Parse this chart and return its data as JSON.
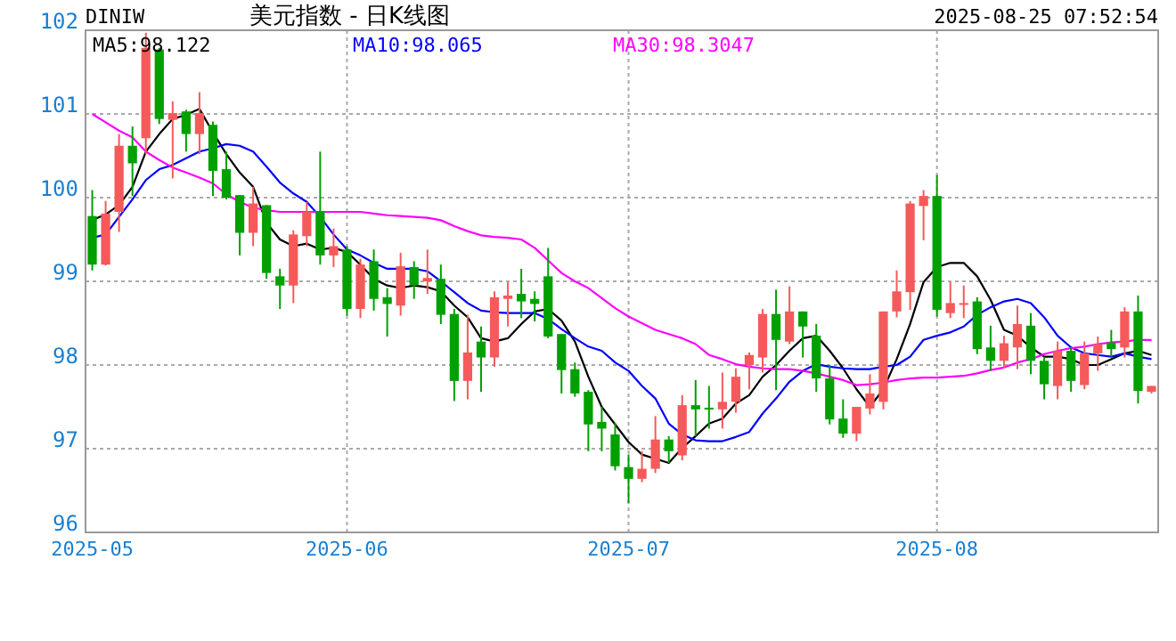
{
  "chart_data": {
    "type": "candlestick",
    "title": "美元指数 - 日K线图",
    "subtitle": "DINIW",
    "annotations": [
      "2025-08-25 07:52:54"
    ],
    "categories": [
      "2025-05",
      null,
      null,
      null,
      null,
      null,
      null,
      null,
      null,
      null,
      null,
      null,
      null,
      null,
      null,
      null,
      null,
      null,
      null,
      "2025-06",
      null,
      null,
      null,
      null,
      null,
      null,
      null,
      null,
      null,
      null,
      null,
      null,
      null,
      null,
      null,
      null,
      null,
      null,
      null,
      null,
      "2025-07",
      null,
      null,
      null,
      null,
      null,
      null,
      null,
      null,
      null,
      null,
      null,
      null,
      null,
      null,
      null,
      null,
      null,
      null,
      null,
      null,
      null,
      null,
      "2025-08",
      null,
      null,
      null,
      null,
      null,
      null,
      null,
      null,
      null,
      null,
      null,
      null,
      null,
      null,
      null,
      null
    ],
    "ohlc": [
      [
        99.78,
        100.09,
        99.13,
        99.2
      ],
      [
        99.2,
        99.96,
        99.19,
        99.81
      ],
      [
        99.83,
        100.76,
        99.59,
        100.62
      ],
      [
        100.62,
        100.85,
        100.02,
        100.41
      ],
      [
        100.71,
        101.97,
        100.52,
        101.79
      ],
      [
        101.77,
        101.79,
        100.88,
        100.94
      ],
      [
        100.93,
        101.15,
        100.23,
        101.01
      ],
      [
        101.03,
        101.05,
        100.55,
        100.76
      ],
      [
        100.76,
        101.26,
        100.52,
        101.01
      ],
      [
        100.87,
        100.91,
        100.02,
        100.32
      ],
      [
        100.34,
        100.55,
        99.98,
        100.0
      ],
      [
        100.03,
        100.03,
        99.31,
        99.58
      ],
      [
        99.58,
        100.13,
        99.42,
        99.93
      ],
      [
        99.91,
        99.91,
        99.03,
        99.1
      ],
      [
        99.06,
        99.15,
        98.67,
        98.95
      ],
      [
        98.95,
        99.61,
        98.74,
        99.56
      ],
      [
        99.54,
        99.95,
        99.42,
        99.83
      ],
      [
        99.84,
        100.55,
        99.2,
        99.31
      ],
      [
        99.31,
        99.63,
        99.17,
        99.42
      ],
      [
        99.38,
        99.42,
        98.59,
        98.67
      ],
      [
        98.67,
        99.27,
        98.56,
        99.2
      ],
      [
        99.24,
        99.38,
        98.65,
        98.79
      ],
      [
        98.81,
        98.92,
        98.34,
        98.73
      ],
      [
        98.71,
        99.34,
        98.59,
        99.18
      ],
      [
        99.17,
        99.24,
        98.79,
        98.95
      ],
      [
        99.0,
        99.38,
        98.85,
        99.04
      ],
      [
        99.03,
        99.2,
        98.49,
        98.6
      ],
      [
        98.61,
        98.67,
        97.57,
        97.81
      ],
      [
        97.81,
        98.6,
        97.59,
        98.15
      ],
      [
        98.28,
        98.46,
        97.68,
        98.09
      ],
      [
        98.09,
        98.88,
        97.98,
        98.81
      ],
      [
        98.79,
        98.99,
        98.46,
        98.83
      ],
      [
        98.85,
        99.15,
        98.56,
        98.76
      ],
      [
        98.79,
        98.88,
        98.52,
        98.73
      ],
      [
        99.06,
        99.4,
        98.32,
        98.34
      ],
      [
        98.37,
        98.37,
        97.66,
        97.94
      ],
      [
        97.95,
        98.03,
        97.62,
        97.66
      ],
      [
        97.68,
        97.7,
        96.97,
        97.29
      ],
      [
        97.32,
        97.5,
        96.97,
        97.24
      ],
      [
        97.17,
        97.31,
        96.74,
        96.79
      ],
      [
        96.78,
        96.93,
        96.35,
        96.64
      ],
      [
        96.64,
        96.97,
        96.6,
        96.76
      ],
      [
        96.76,
        97.39,
        96.71,
        97.11
      ],
      [
        97.11,
        97.15,
        96.83,
        96.97
      ],
      [
        96.92,
        97.64,
        96.86,
        97.52
      ],
      [
        97.52,
        97.82,
        97.15,
        97.47
      ],
      [
        97.49,
        97.75,
        97.24,
        97.47
      ],
      [
        97.47,
        97.91,
        97.24,
        97.56
      ],
      [
        97.56,
        97.96,
        97.43,
        97.86
      ],
      [
        98.0,
        98.15,
        97.71,
        98.12
      ],
      [
        98.09,
        98.67,
        97.91,
        98.61
      ],
      [
        98.61,
        98.9,
        97.7,
        98.3
      ],
      [
        98.28,
        98.94,
        98.25,
        98.64
      ],
      [
        98.64,
        98.64,
        98.09,
        98.46
      ],
      [
        98.35,
        98.49,
        97.68,
        97.84
      ],
      [
        97.84,
        98.0,
        97.29,
        97.35
      ],
      [
        97.36,
        97.59,
        97.13,
        97.18
      ],
      [
        97.18,
        97.5,
        97.09,
        97.5
      ],
      [
        97.48,
        97.89,
        97.41,
        97.66
      ],
      [
        97.56,
        98.64,
        97.47,
        98.64
      ],
      [
        98.64,
        99.13,
        98.57,
        98.88
      ],
      [
        98.87,
        99.96,
        98.66,
        99.93
      ],
      [
        99.9,
        100.09,
        99.49,
        100.02
      ],
      [
        100.02,
        100.27,
        98.58,
        98.66
      ],
      [
        98.62,
        98.99,
        98.56,
        98.74
      ],
      [
        98.73,
        98.95,
        98.56,
        98.74
      ],
      [
        98.76,
        98.81,
        98.13,
        98.19
      ],
      [
        98.21,
        98.47,
        97.93,
        98.05
      ],
      [
        98.05,
        98.35,
        97.96,
        98.26
      ],
      [
        98.21,
        98.71,
        97.95,
        98.49
      ],
      [
        98.47,
        98.62,
        97.89,
        98.05
      ],
      [
        98.05,
        98.1,
        97.59,
        97.77
      ],
      [
        97.75,
        98.28,
        97.59,
        98.17
      ],
      [
        98.17,
        98.21,
        97.68,
        97.81
      ],
      [
        97.76,
        98.28,
        97.71,
        98.14
      ],
      [
        98.14,
        98.34,
        97.93,
        98.25
      ],
      [
        98.27,
        98.42,
        98.1,
        98.19
      ],
      [
        98.21,
        98.69,
        98.09,
        98.64
      ],
      [
        98.64,
        98.83,
        97.54,
        97.69
      ],
      [
        97.68,
        97.75,
        97.66,
        97.75
      ]
    ],
    "series": [
      {
        "name": "MA5:98.122",
        "type": "line",
        "color": "#000000",
        "values": [
          99.73,
          99.8,
          99.91,
          100.13,
          100.55,
          100.76,
          100.94,
          100.99,
          101.06,
          100.78,
          100.52,
          100.3,
          100.13,
          99.7,
          99.5,
          99.42,
          99.45,
          99.38,
          99.4,
          99.35,
          99.2,
          99.03,
          98.95,
          98.92,
          98.95,
          98.93,
          98.88,
          98.71,
          98.57,
          98.32,
          98.28,
          98.32,
          98.49,
          98.64,
          98.67,
          98.53,
          98.28,
          97.86,
          97.5,
          97.29,
          97.08,
          96.93,
          96.88,
          96.83,
          97.01,
          97.15,
          97.3,
          97.36,
          97.54,
          97.64,
          97.86,
          98.0,
          98.17,
          98.32,
          98.35,
          98.17,
          97.96,
          97.71,
          97.5,
          97.71,
          98.07,
          98.49,
          98.99,
          99.17,
          99.22,
          99.22,
          99.06,
          98.78,
          98.42,
          98.35,
          98.21,
          98.1,
          98.1,
          98.07,
          98.0,
          98.0,
          98.07,
          98.14,
          98.17,
          98.12
        ]
      },
      {
        "name": "MA10:98.065",
        "type": "line",
        "color": "#0000ff",
        "values": [
          99.52,
          99.56,
          99.77,
          99.98,
          100.21,
          100.34,
          100.39,
          100.47,
          100.55,
          100.59,
          100.64,
          100.62,
          100.55,
          100.37,
          100.18,
          100.05,
          99.95,
          99.77,
          99.56,
          99.38,
          99.31,
          99.22,
          99.15,
          99.15,
          99.15,
          99.12,
          99.0,
          98.87,
          98.74,
          98.65,
          98.63,
          98.62,
          98.62,
          98.62,
          98.55,
          98.43,
          98.32,
          98.22,
          98.17,
          98.03,
          97.93,
          97.75,
          97.6,
          97.3,
          97.17,
          97.1,
          97.09,
          97.09,
          97.14,
          97.2,
          97.42,
          97.6,
          97.8,
          97.93,
          98.01,
          97.98,
          97.96,
          97.95,
          97.95,
          97.98,
          98.0,
          98.1,
          98.3,
          98.35,
          98.39,
          98.46,
          98.6,
          98.69,
          98.76,
          98.79,
          98.74,
          98.57,
          98.35,
          98.21,
          98.14,
          98.12,
          98.1,
          98.14,
          98.1,
          98.07
        ]
      },
      {
        "name": "MA30:98.3047",
        "type": "line",
        "color": "#ff00ff",
        "values": [
          101.0,
          100.9,
          100.8,
          100.72,
          100.55,
          100.45,
          100.36,
          100.3,
          100.24,
          100.17,
          100.04,
          99.95,
          99.88,
          99.85,
          99.83,
          99.83,
          99.83,
          99.83,
          99.83,
          99.83,
          99.83,
          99.81,
          99.79,
          99.78,
          99.77,
          99.76,
          99.73,
          99.66,
          99.6,
          99.55,
          99.53,
          99.52,
          99.5,
          99.4,
          99.25,
          99.1,
          99.0,
          98.92,
          98.8,
          98.68,
          98.58,
          98.5,
          98.42,
          98.37,
          98.32,
          98.25,
          98.12,
          98.07,
          98.01,
          97.98,
          97.96,
          97.95,
          97.95,
          97.93,
          97.9,
          97.86,
          97.82,
          97.76,
          97.77,
          97.79,
          97.82,
          97.84,
          97.85,
          97.85,
          97.86,
          97.87,
          97.9,
          97.94,
          97.97,
          98.03,
          98.07,
          98.13,
          98.17,
          98.2,
          98.22,
          98.25,
          98.27,
          98.28,
          98.3,
          98.3
        ]
      }
    ],
    "ylim": [
      96,
      102
    ],
    "yticks": [
      96,
      97,
      98,
      99,
      100,
      101,
      102
    ],
    "grid": true,
    "legend": "top left"
  }
}
